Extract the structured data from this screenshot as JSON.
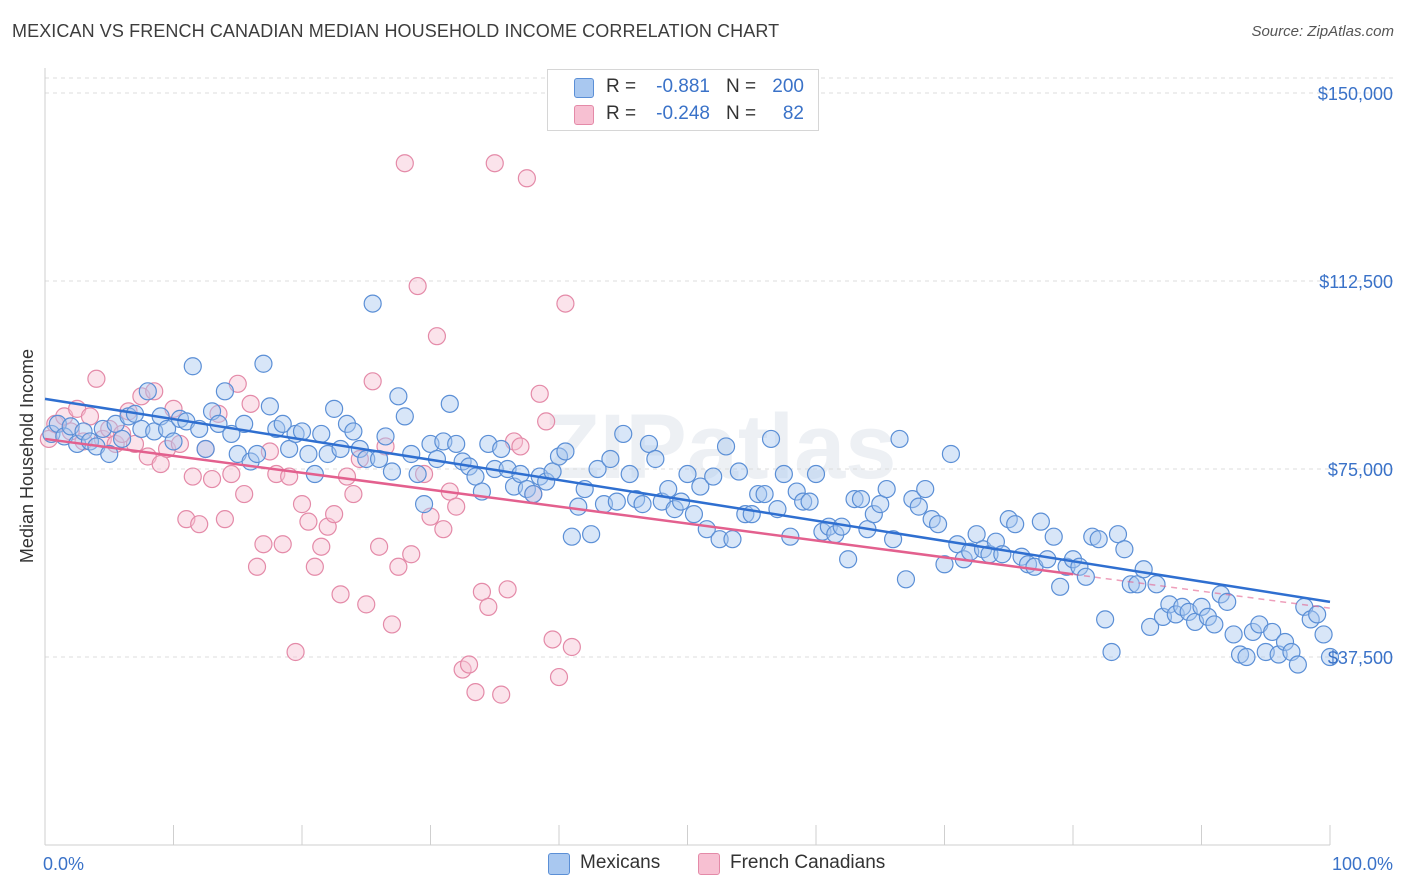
{
  "title": "MEXICAN VS FRENCH CANADIAN MEDIAN HOUSEHOLD INCOME CORRELATION CHART",
  "source": "Source: ZipAtlas.com",
  "watermark": "ZIPatlas",
  "legend_top": [
    {
      "r_label": "R =",
      "r_value": "-0.881",
      "n_label": "N =",
      "n_value": "200"
    },
    {
      "r_label": "R =",
      "r_value": "-0.248",
      "n_label": "N =",
      "n_value": "82"
    }
  ],
  "legend_bottom": [
    "Mexicans",
    "French Canadians"
  ],
  "colors": {
    "mexicans_fill": "#a9c8f0",
    "mexicans_stroke": "#5b8fd6",
    "mexicans_line": "#2f6fd0",
    "french_fill": "#f7c0d2",
    "french_stroke": "#e48aa8",
    "french_line": "#e3608e",
    "axis_label": "#3a72c8",
    "grid": "#dcdcdc"
  },
  "chart_data": {
    "type": "scatter",
    "xlabel": "",
    "ylabel": "Median Household Income",
    "xlim": [
      0,
      100
    ],
    "ylim": [
      0,
      153000
    ],
    "x_tick_labels": [
      "0.0%",
      "100.0%"
    ],
    "y_ticks": [
      37500,
      75000,
      112500,
      150000
    ],
    "y_tick_labels": [
      "$37,500",
      "$75,000",
      "$112,500",
      "$150,000"
    ],
    "grid": "horizontal-dashed",
    "legend": "top-center",
    "series": [
      {
        "name": "Mexicans",
        "trend": {
          "x0": 0,
          "y0": 89000,
          "x1": 100,
          "y1": 48500,
          "extend_dashed_to": 100
        },
        "points": [
          [
            0.5,
            82000
          ],
          [
            1,
            84000
          ],
          [
            1.5,
            81500
          ],
          [
            2,
            83500
          ],
          [
            2.5,
            80000
          ],
          [
            3,
            82500
          ],
          [
            3.5,
            80500
          ],
          [
            4,
            79500
          ],
          [
            4.5,
            83000
          ],
          [
            5,
            78000
          ],
          [
            5.5,
            84000
          ],
          [
            6,
            81000
          ],
          [
            6.5,
            85500
          ],
          [
            7,
            86000
          ],
          [
            7.5,
            83000
          ],
          [
            8,
            90500
          ],
          [
            8.5,
            82500
          ],
          [
            9,
            85500
          ],
          [
            9.5,
            83000
          ],
          [
            10,
            80500
          ],
          [
            10.5,
            85000
          ],
          [
            11,
            84500
          ],
          [
            11.5,
            95500
          ],
          [
            12,
            83000
          ],
          [
            12.5,
            79000
          ],
          [
            13,
            86500
          ],
          [
            13.5,
            84000
          ],
          [
            14,
            90500
          ],
          [
            14.5,
            82000
          ],
          [
            15,
            78000
          ],
          [
            15.5,
            84000
          ],
          [
            16,
            76500
          ],
          [
            16.5,
            78000
          ],
          [
            17,
            96000
          ],
          [
            17.5,
            87500
          ],
          [
            18,
            83000
          ],
          [
            18.5,
            84000
          ],
          [
            19,
            79000
          ],
          [
            19.5,
            82000
          ],
          [
            20,
            82500
          ],
          [
            20.5,
            78000
          ],
          [
            21,
            74000
          ],
          [
            21.5,
            82000
          ],
          [
            22,
            78000
          ],
          [
            22.5,
            87000
          ],
          [
            23,
            79000
          ],
          [
            23.5,
            84000
          ],
          [
            24,
            82500
          ],
          [
            24.5,
            79000
          ],
          [
            25,
            77000
          ],
          [
            25.5,
            108000
          ],
          [
            26,
            77000
          ],
          [
            26.5,
            81500
          ],
          [
            27,
            74500
          ],
          [
            27.5,
            89500
          ],
          [
            28,
            85500
          ],
          [
            28.5,
            78000
          ],
          [
            29,
            74000
          ],
          [
            29.5,
            68000
          ],
          [
            30,
            80000
          ],
          [
            30.5,
            77000
          ],
          [
            31,
            80500
          ],
          [
            31.5,
            88000
          ],
          [
            32,
            80000
          ],
          [
            32.5,
            76500
          ],
          [
            33,
            75500
          ],
          [
            33.5,
            73500
          ],
          [
            34,
            70500
          ],
          [
            34.5,
            80000
          ],
          [
            35,
            75000
          ],
          [
            35.5,
            79000
          ],
          [
            36,
            75000
          ],
          [
            36.5,
            71500
          ],
          [
            37,
            74000
          ],
          [
            37.5,
            71000
          ],
          [
            38,
            70000
          ],
          [
            38.5,
            73500
          ],
          [
            39,
            72500
          ],
          [
            39.5,
            74500
          ],
          [
            40,
            77500
          ],
          [
            40.5,
            78500
          ],
          [
            41,
            61500
          ],
          [
            41.5,
            67500
          ],
          [
            42,
            71000
          ],
          [
            42.5,
            62000
          ],
          [
            43,
            75000
          ],
          [
            43.5,
            68000
          ],
          [
            44,
            77000
          ],
          [
            44.5,
            68500
          ],
          [
            45,
            82000
          ],
          [
            45.5,
            74000
          ],
          [
            46,
            69000
          ],
          [
            46.5,
            68000
          ],
          [
            47,
            80000
          ],
          [
            47.5,
            77000
          ],
          [
            48,
            68500
          ],
          [
            48.5,
            71000
          ],
          [
            49,
            67000
          ],
          [
            49.5,
            68500
          ],
          [
            50,
            74000
          ],
          [
            50.5,
            66000
          ],
          [
            51,
            71500
          ],
          [
            51.5,
            63000
          ],
          [
            52,
            73500
          ],
          [
            52.5,
            61000
          ],
          [
            53,
            79500
          ],
          [
            53.5,
            61000
          ],
          [
            54,
            74500
          ],
          [
            54.5,
            66000
          ],
          [
            55,
            66000
          ],
          [
            55.5,
            70000
          ],
          [
            56,
            70000
          ],
          [
            56.5,
            81000
          ],
          [
            57,
            67000
          ],
          [
            57.5,
            74000
          ],
          [
            58,
            61500
          ],
          [
            58.5,
            70500
          ],
          [
            59,
            68500
          ],
          [
            59.5,
            68500
          ],
          [
            60,
            74000
          ],
          [
            60.5,
            62500
          ],
          [
            61,
            63500
          ],
          [
            61.5,
            62000
          ],
          [
            62,
            63500
          ],
          [
            62.5,
            57000
          ],
          [
            63,
            69000
          ],
          [
            63.5,
            69000
          ],
          [
            64,
            63000
          ],
          [
            64.5,
            66000
          ],
          [
            65,
            68000
          ],
          [
            65.5,
            71000
          ],
          [
            66,
            61000
          ],
          [
            66.5,
            81000
          ],
          [
            67,
            53000
          ],
          [
            67.5,
            69000
          ],
          [
            68,
            67500
          ],
          [
            68.5,
            71000
          ],
          [
            69,
            65000
          ],
          [
            69.5,
            64000
          ],
          [
            70,
            56000
          ],
          [
            70.5,
            78000
          ],
          [
            71,
            60000
          ],
          [
            71.5,
            57000
          ],
          [
            72,
            58500
          ],
          [
            72.5,
            62000
          ],
          [
            73,
            59000
          ],
          [
            73.5,
            58000
          ],
          [
            74,
            60500
          ],
          [
            74.5,
            58000
          ],
          [
            75,
            65000
          ],
          [
            75.5,
            64000
          ],
          [
            76,
            57500
          ],
          [
            76.5,
            56000
          ],
          [
            77,
            55500
          ],
          [
            77.5,
            64500
          ],
          [
            78,
            57000
          ],
          [
            78.5,
            61500
          ],
          [
            79,
            51500
          ],
          [
            79.5,
            55500
          ],
          [
            80,
            57000
          ],
          [
            80.5,
            55500
          ],
          [
            81,
            53500
          ],
          [
            81.5,
            61500
          ],
          [
            82,
            61000
          ],
          [
            82.5,
            45000
          ],
          [
            83,
            38500
          ],
          [
            83.5,
            62000
          ],
          [
            84,
            59000
          ],
          [
            84.5,
            52000
          ],
          [
            85,
            52000
          ],
          [
            85.5,
            55000
          ],
          [
            86,
            43500
          ],
          [
            86.5,
            52000
          ],
          [
            87,
            45500
          ],
          [
            87.5,
            48000
          ],
          [
            88,
            46000
          ],
          [
            88.5,
            47500
          ],
          [
            89,
            46500
          ],
          [
            89.5,
            44500
          ],
          [
            90,
            47500
          ],
          [
            90.5,
            45500
          ],
          [
            91,
            44000
          ],
          [
            91.5,
            50000
          ],
          [
            92,
            48500
          ],
          [
            92.5,
            42000
          ],
          [
            93,
            38000
          ],
          [
            93.5,
            37500
          ],
          [
            94,
            42500
          ],
          [
            94.5,
            44000
          ],
          [
            95,
            38500
          ],
          [
            95.5,
            42500
          ],
          [
            96,
            38000
          ],
          [
            96.5,
            40500
          ],
          [
            97,
            38500
          ],
          [
            97.5,
            36000
          ],
          [
            98,
            47500
          ],
          [
            98.5,
            45000
          ],
          [
            99,
            46000
          ],
          [
            99.5,
            42000
          ],
          [
            100,
            37500
          ]
        ]
      },
      {
        "name": "French Canadians",
        "trend": {
          "x0": 0,
          "y0": 81000,
          "x1": 80,
          "y1": 54000
        },
        "points": [
          [
            0.3,
            81000
          ],
          [
            0.8,
            84000
          ],
          [
            1.5,
            85500
          ],
          [
            2,
            82500
          ],
          [
            2.5,
            87000
          ],
          [
            3,
            80500
          ],
          [
            3.5,
            85500
          ],
          [
            4,
            93000
          ],
          [
            4.5,
            81000
          ],
          [
            5,
            83000
          ],
          [
            5.5,
            80000
          ],
          [
            6,
            82000
          ],
          [
            6.5,
            86500
          ],
          [
            7,
            80000
          ],
          [
            7.5,
            89500
          ],
          [
            8,
            77500
          ],
          [
            8.5,
            90500
          ],
          [
            9,
            76000
          ],
          [
            9.5,
            79000
          ],
          [
            10,
            87000
          ],
          [
            10.5,
            80000
          ],
          [
            11,
            65000
          ],
          [
            11.5,
            73500
          ],
          [
            12,
            64000
          ],
          [
            12.5,
            79000
          ],
          [
            13,
            73000
          ],
          [
            13.5,
            86000
          ],
          [
            14,
            65000
          ],
          [
            14.5,
            74000
          ],
          [
            15,
            92000
          ],
          [
            15.5,
            70000
          ],
          [
            16,
            88000
          ],
          [
            16.5,
            55500
          ],
          [
            17,
            60000
          ],
          [
            17.5,
            78500
          ],
          [
            18,
            74000
          ],
          [
            18.5,
            60000
          ],
          [
            19,
            73500
          ],
          [
            19.5,
            38500
          ],
          [
            20,
            68000
          ],
          [
            20.5,
            64500
          ],
          [
            21,
            55500
          ],
          [
            21.5,
            59500
          ],
          [
            22,
            63500
          ],
          [
            22.5,
            66000
          ],
          [
            23,
            50000
          ],
          [
            23.5,
            73500
          ],
          [
            24,
            70000
          ],
          [
            24.5,
            77000
          ],
          [
            25,
            48000
          ],
          [
            25.5,
            92500
          ],
          [
            26,
            59500
          ],
          [
            26.5,
            79500
          ],
          [
            27,
            44000
          ],
          [
            27.5,
            55500
          ],
          [
            28,
            136000
          ],
          [
            28.5,
            58000
          ],
          [
            29,
            111500
          ],
          [
            29.5,
            74000
          ],
          [
            30,
            65500
          ],
          [
            30.5,
            101500
          ],
          [
            31,
            63000
          ],
          [
            31.5,
            70500
          ],
          [
            32,
            67500
          ],
          [
            32.5,
            35000
          ],
          [
            33,
            36000
          ],
          [
            33.5,
            30500
          ],
          [
            34,
            50500
          ],
          [
            34.5,
            47500
          ],
          [
            35,
            136000
          ],
          [
            35.5,
            30000
          ],
          [
            36,
            51000
          ],
          [
            36.5,
            80500
          ],
          [
            37,
            79500
          ],
          [
            37.5,
            133000
          ],
          [
            38,
            70000
          ],
          [
            38.5,
            90000
          ],
          [
            39,
            84500
          ],
          [
            39.5,
            41000
          ],
          [
            40,
            33500
          ],
          [
            40.5,
            108000
          ],
          [
            41,
            39500
          ]
        ]
      }
    ]
  }
}
